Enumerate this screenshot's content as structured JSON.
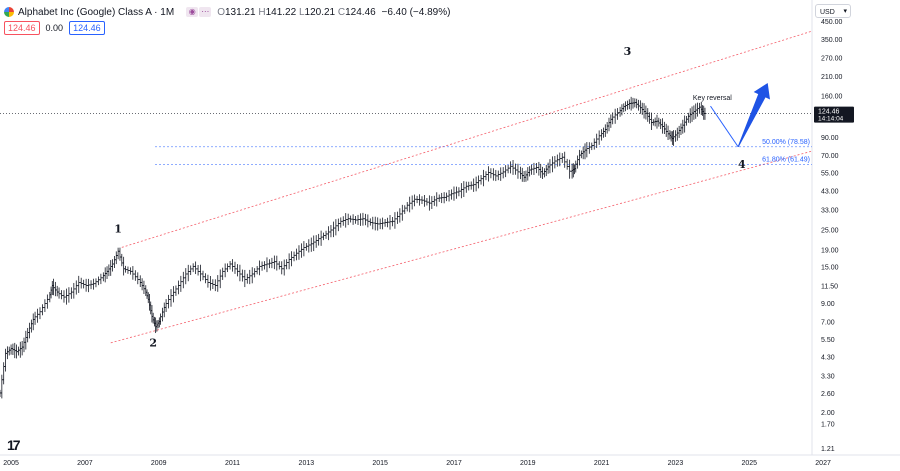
{
  "header": {
    "title": "Alphabet Inc (Google) Class A · 1M",
    "ohlc": {
      "o_label": "O",
      "o": "131.21",
      "h_label": "H",
      "h": "141.22",
      "l_label": "L",
      "l": "120.21",
      "c_label": "C",
      "c": "124.46",
      "change": "−6.40 (−4.89%)"
    },
    "sell_price": "124.46",
    "spread": "0.00",
    "buy_price": "124.46"
  },
  "currency_select": {
    "value": "USD"
  },
  "price_tag": {
    "price": "124.46",
    "countdown": "14:14:04"
  },
  "chart_data": {
    "type": "bar",
    "subtype": "ohlc",
    "scale": "log",
    "ylim": [
      1.1,
      600
    ],
    "xlim": [
      2004.7,
      2026.7
    ],
    "yticks": [
      "1.21",
      "1.70",
      "2.00",
      "2.60",
      "3.30",
      "4.30",
      "5.50",
      "7.00",
      "9.00",
      "11.50",
      "15.00",
      "19.00",
      "25.00",
      "33.00",
      "43.00",
      "55.00",
      "70.00",
      "90.00",
      "120.00",
      "160.00",
      "210.00",
      "270.00",
      "350.00",
      "450.00"
    ],
    "xticks": [
      "2005",
      "2007",
      "2009",
      "2011",
      "2013",
      "2015",
      "2017",
      "2019",
      "2021",
      "2023",
      "2025",
      "2027"
    ],
    "grid": false,
    "price_points": [
      [
        2004.6,
        2.5
      ],
      [
        2004.75,
        2.6
      ],
      [
        2004.9,
        4.5
      ],
      [
        2005.05,
        4.8
      ],
      [
        2005.2,
        4.6
      ],
      [
        2005.35,
        4.9
      ],
      [
        2005.5,
        6.0
      ],
      [
        2005.65,
        7.2
      ],
      [
        2005.85,
        8.0
      ],
      [
        2006.05,
        9.5
      ],
      [
        2006.15,
        11.5
      ],
      [
        2006.3,
        10.5
      ],
      [
        2006.5,
        9.8
      ],
      [
        2006.7,
        10.5
      ],
      [
        2006.9,
        12.0
      ],
      [
        2007.1,
        11.5
      ],
      [
        2007.3,
        11.8
      ],
      [
        2007.5,
        12.8
      ],
      [
        2007.65,
        14.0
      ],
      [
        2007.8,
        15.5
      ],
      [
        2007.95,
        18.5
      ],
      [
        2008.1,
        14.5
      ],
      [
        2008.3,
        14.0
      ],
      [
        2008.5,
        12.5
      ],
      [
        2008.65,
        11.0
      ],
      [
        2008.75,
        9.5
      ],
      [
        2008.85,
        7.5
      ],
      [
        2008.95,
        6.5
      ],
      [
        2009.05,
        7.0
      ],
      [
        2009.2,
        8.5
      ],
      [
        2009.4,
        10.0
      ],
      [
        2009.6,
        11.5
      ],
      [
        2009.8,
        13.5
      ],
      [
        2010.0,
        15.0
      ],
      [
        2010.2,
        13.5
      ],
      [
        2010.4,
        12.0
      ],
      [
        2010.6,
        11.5
      ],
      [
        2010.8,
        14.0
      ],
      [
        2011.0,
        15.5
      ],
      [
        2011.2,
        14.0
      ],
      [
        2011.4,
        12.5
      ],
      [
        2011.6,
        13.5
      ],
      [
        2011.8,
        15.0
      ],
      [
        2012.0,
        15.5
      ],
      [
        2012.2,
        16.0
      ],
      [
        2012.4,
        14.5
      ],
      [
        2012.6,
        16.5
      ],
      [
        2012.8,
        18.0
      ],
      [
        2013.0,
        19.5
      ],
      [
        2013.2,
        20.5
      ],
      [
        2013.4,
        22.0
      ],
      [
        2013.6,
        23.5
      ],
      [
        2013.8,
        25.5
      ],
      [
        2014.0,
        28.0
      ],
      [
        2014.2,
        29.0
      ],
      [
        2014.4,
        28.5
      ],
      [
        2014.6,
        29.0
      ],
      [
        2014.8,
        27.5
      ],
      [
        2015.0,
        27.0
      ],
      [
        2015.2,
        27.5
      ],
      [
        2015.4,
        28.0
      ],
      [
        2015.6,
        31.0
      ],
      [
        2015.8,
        35.0
      ],
      [
        2016.0,
        38.0
      ],
      [
        2016.2,
        37.5
      ],
      [
        2016.4,
        36.0
      ],
      [
        2016.6,
        38.5
      ],
      [
        2016.8,
        39.0
      ],
      [
        2017.0,
        41.0
      ],
      [
        2017.2,
        42.5
      ],
      [
        2017.4,
        45.5
      ],
      [
        2017.6,
        46.5
      ],
      [
        2017.8,
        50.5
      ],
      [
        2018.0,
        55.0
      ],
      [
        2018.2,
        52.5
      ],
      [
        2018.4,
        55.5
      ],
      [
        2018.6,
        60.0
      ],
      [
        2018.8,
        55.5
      ],
      [
        2018.95,
        51.5
      ],
      [
        2019.1,
        57.0
      ],
      [
        2019.3,
        59.0
      ],
      [
        2019.45,
        54.0
      ],
      [
        2019.6,
        59.5
      ],
      [
        2019.8,
        64.5
      ],
      [
        2020.0,
        68.0
      ],
      [
        2020.2,
        56.0
      ],
      [
        2020.3,
        58.0
      ],
      [
        2020.45,
        70.0
      ],
      [
        2020.6,
        75.0
      ],
      [
        2020.8,
        80.0
      ],
      [
        2021.0,
        91.5
      ],
      [
        2021.15,
        100.0
      ],
      [
        2021.3,
        115.0
      ],
      [
        2021.5,
        126.0
      ],
      [
        2021.65,
        137.0
      ],
      [
        2021.8,
        143.0
      ],
      [
        2021.95,
        145.0
      ],
      [
        2022.1,
        135.0
      ],
      [
        2022.25,
        125.0
      ],
      [
        2022.4,
        110.0
      ],
      [
        2022.55,
        112.0
      ],
      [
        2022.7,
        104.0
      ],
      [
        2022.85,
        94.0
      ],
      [
        2022.95,
        88.0
      ],
      [
        2023.1,
        95.0
      ],
      [
        2023.25,
        106.0
      ],
      [
        2023.4,
        120.0
      ],
      [
        2023.55,
        128.0
      ],
      [
        2023.7,
        136.0
      ],
      [
        2023.8,
        124.46
      ]
    ],
    "channel_lines": [
      {
        "from": [
          2008.0,
          19.5
        ],
        "to": [
          2026.7,
          390.0
        ]
      },
      {
        "from": [
          2007.7,
          5.2
        ],
        "to": [
          2026.7,
          74.0
        ]
      }
    ],
    "current_price": 124.46,
    "fib_levels": [
      {
        "label": "50.00% (78.58)",
        "value": 78.58
      },
      {
        "label": "61.80% (61.49)",
        "value": 61.49
      }
    ],
    "fib_x_start": 2008.9,
    "wave_labels": [
      {
        "label": "1",
        "x": 2007.9,
        "y": 24.0
      },
      {
        "label": "2",
        "x": 2008.85,
        "y": 4.95
      },
      {
        "label": "3",
        "x": 2021.7,
        "y": 280.0
      },
      {
        "label": "4",
        "x": 2024.8,
        "y": 58.5
      }
    ],
    "annotation": {
      "text": "Key reversal",
      "x": 2024.0,
      "y": 150.0
    },
    "projection": {
      "down_from": [
        2023.95,
        138.0
      ],
      "low_point": [
        2024.7,
        78.5
      ],
      "up_to": [
        2025.5,
        190.0
      ]
    }
  }
}
